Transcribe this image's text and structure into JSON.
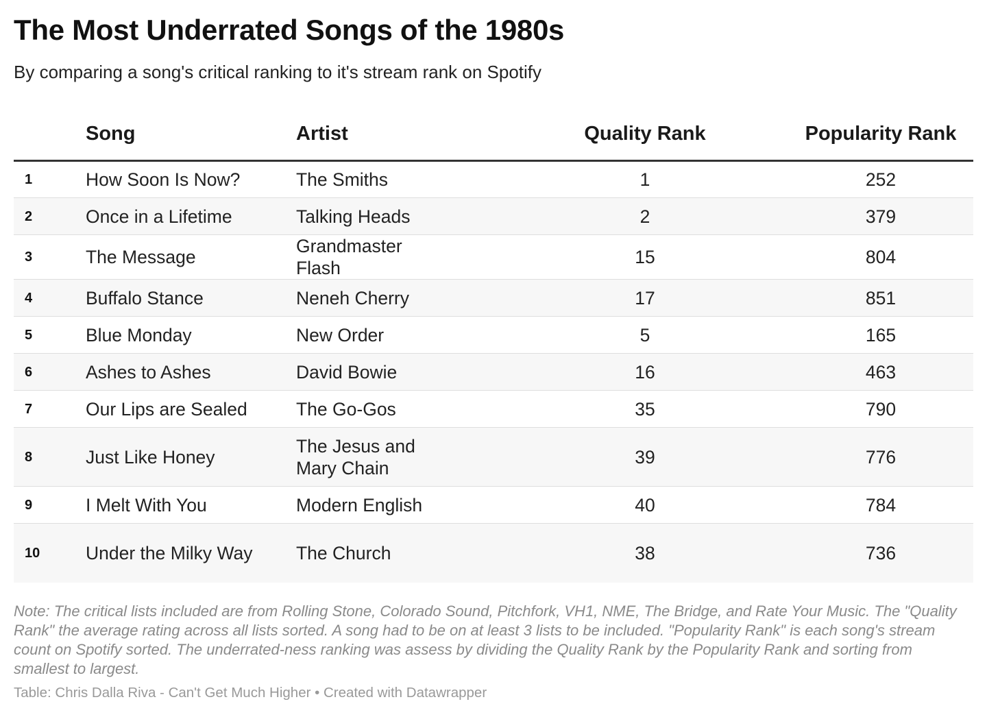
{
  "chart_data": {
    "type": "table",
    "title": "The Most Underrated Songs of the 1980s",
    "subtitle": "By comparing a song's critical ranking to it's stream rank on Spotify",
    "columns": [
      "Song",
      "Artist",
      "Quality Rank",
      "Popularity Rank"
    ],
    "rows": [
      {
        "num": "1",
        "song": "How Soon Is Now?",
        "artist": "The Smiths",
        "quality": 1,
        "popularity": 252
      },
      {
        "num": "2",
        "song": "Once in a Lifetime",
        "artist": "Talking Heads",
        "quality": 2,
        "popularity": 379
      },
      {
        "num": "3",
        "song": "The Message",
        "artist": "Grandmaster Flash",
        "quality": 15,
        "popularity": 804
      },
      {
        "num": "4",
        "song": "Buffalo Stance",
        "artist": "Neneh Cherry",
        "quality": 17,
        "popularity": 851
      },
      {
        "num": "5",
        "song": "Blue Monday",
        "artist": "New Order",
        "quality": 5,
        "popularity": 165
      },
      {
        "num": "6",
        "song": "Ashes to Ashes",
        "artist": "David Bowie",
        "quality": 16,
        "popularity": 463
      },
      {
        "num": "7",
        "song": "Our Lips are Sealed",
        "artist": "The Go-Gos",
        "quality": 35,
        "popularity": 790
      },
      {
        "num": "8",
        "song": "Just Like Honey",
        "artist": "The Jesus and Mary Chain",
        "quality": 39,
        "popularity": 776
      },
      {
        "num": "9",
        "song": "I Melt With You",
        "artist": "Modern English",
        "quality": 40,
        "popularity": 784
      },
      {
        "num": "10",
        "song": "Under the Milky Way",
        "artist": "The Church",
        "quality": 38,
        "popularity": 736
      }
    ],
    "note": "Note: The critical lists included are from Rolling Stone, Colorado Sound, Pitchfork, VH1, NME, The Bridge, and Rate Your Music. The \"Quality Rank\" the average rating across all lists sorted. A song had to be on at least 3 lists to be included. \"Popularity Rank\" is each song's stream count on Spotify sorted. The underrated-ness ranking was assess by dividing the Quality Rank by the Popularity Rank and sorting from smallest to largest.",
    "credit": "Table: Chris Dalla Riva - Can't Get Much Higher • Created with Datawrapper"
  }
}
